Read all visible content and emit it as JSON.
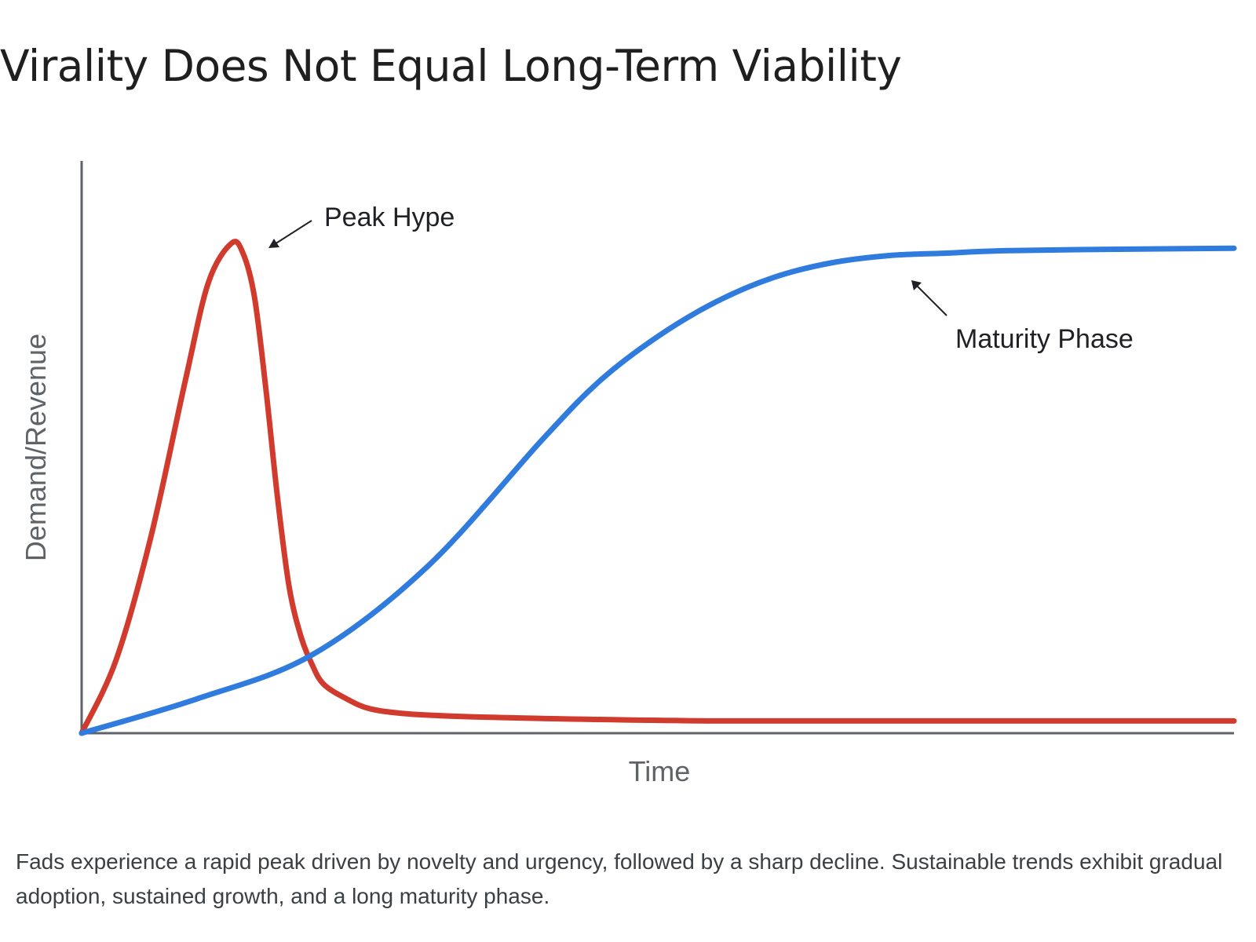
{
  "title": "Virality Does Not Equal Long-Term Viability",
  "caption": "Fads experience a rapid peak driven by novelty and urgency, followed by a sharp decline. Sustainable trends exhibit gradual adoption, sustained growth, and a long maturity phase.",
  "colors": {
    "fad": "#d03b2e",
    "sustainable": "#2f7bde",
    "axis": "#5f6368",
    "annotation": "#202124"
  },
  "chart_data": {
    "type": "line",
    "title": "Virality Does Not Equal Long-Term Viability",
    "xlabel": "Time",
    "ylabel": "Demand/Revenue",
    "xlim": [
      0,
      100
    ],
    "ylim": [
      0,
      100
    ],
    "grid": false,
    "legend": "none",
    "series": [
      {
        "color": "#d03b2e",
        "x": [
          0,
          3,
          6,
          9,
          11,
          13,
          14,
          15,
          16,
          17,
          18,
          19,
          20,
          21,
          23,
          25,
          28,
          32,
          40,
          55,
          75,
          100
        ],
        "y": [
          0,
          15,
          40,
          72,
          92,
          100,
          98,
          89,
          70,
          48,
          30,
          20,
          14,
          10,
          7,
          5,
          4,
          3.5,
          3,
          2.5,
          2.5,
          2.5
        ]
      },
      {
        "color": "#2f7bde",
        "x": [
          0,
          10,
          20,
          30,
          40,
          45,
          50,
          55,
          60,
          65,
          70,
          75,
          80,
          90,
          100
        ],
        "y": [
          0,
          7,
          16,
          34,
          60,
          72,
          81,
          88,
          93,
          96,
          97.5,
          98,
          98.5,
          98.8,
          99
        ]
      }
    ],
    "annotations": [
      {
        "text": "Peak Hype",
        "x": 13,
        "y": 100
      },
      {
        "text": "Maturity Phase",
        "x": 72,
        "y": 97.5
      }
    ]
  }
}
